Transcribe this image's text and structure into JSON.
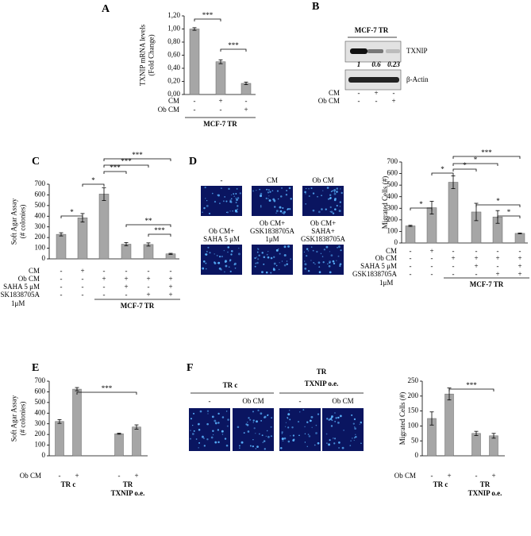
{
  "panel_labels": [
    "A",
    "B",
    "C",
    "D",
    "E",
    "F"
  ],
  "chart_data": [
    {
      "type": "bar",
      "ylabel": [
        "TXNIP mRNA levels",
        "(Fold Change)"
      ],
      "color": "#a6a6a6",
      "values": [
        1.0,
        0.5,
        0.17
      ],
      "errors": [
        0.02,
        0.03,
        0.02
      ],
      "ylim": [
        0,
        1.2
      ],
      "yticks": [
        {
          "value": 0,
          "label": "0,00"
        },
        {
          "value": 0.2,
          "label": "0,20"
        },
        {
          "value": 0.4,
          "label": "0,40"
        },
        {
          "value": 0.6,
          "label": "0,60"
        },
        {
          "value": 0.8,
          "label": "0,80"
        },
        {
          "value": 1.0,
          "label": "1,00"
        },
        {
          "value": 1.2,
          "label": "1,20"
        }
      ],
      "significance": [
        {
          "from": 0,
          "to": 1,
          "label": "***"
        },
        {
          "from": 1,
          "to": 2,
          "label": "***"
        }
      ],
      "conditions": [
        {
          "label": "CM",
          "signs": [
            "-",
            "+",
            "-"
          ]
        },
        {
          "label": "Ob CM",
          "signs": [
            "-",
            "-",
            "+"
          ]
        }
      ],
      "groups": [
        {
          "label": [
            "MCF-7 TR"
          ],
          "from": 0,
          "to": 2
        }
      ]
    },
    {
      "type": "bar",
      "ylabel": [
        "Soft Agar Assay",
        "(# colonies)"
      ],
      "color": "#a6a6a6",
      "values": [
        230,
        385,
        608,
        138,
        135,
        47
      ],
      "errors": [
        15,
        40,
        60,
        15,
        15,
        5
      ],
      "ylim": [
        0,
        700
      ],
      "yticks": [
        0,
        100,
        200,
        300,
        400,
        500,
        600,
        700
      ],
      "significance": [
        {
          "from": 0,
          "to": 1,
          "label": "*"
        },
        {
          "from": 1,
          "to": 2,
          "label": "*"
        },
        {
          "from": 2,
          "to": 3,
          "label": "***"
        },
        {
          "from": 2,
          "to": 4,
          "label": "***"
        },
        {
          "from": 2,
          "to": 5,
          "label": "***"
        },
        {
          "from": 3,
          "to": 5,
          "label": "**"
        },
        {
          "from": 4,
          "to": 5,
          "label": "***"
        }
      ],
      "conditions": [
        {
          "label": "CM",
          "signs": [
            "-",
            "+",
            "-",
            "-",
            "-",
            "-"
          ]
        },
        {
          "label": "Ob CM",
          "signs": [
            "-",
            "-",
            "+",
            "+",
            "+",
            "+"
          ]
        },
        {
          "label": "SAHA 5 μM",
          "signs": [
            "-",
            "-",
            "-",
            "+",
            "-",
            "+"
          ]
        },
        {
          "label": "GSK1838705A",
          "label2": "1μM",
          "signs": [
            "-",
            "-",
            "-",
            "-",
            "+",
            "+"
          ]
        }
      ],
      "groups": [
        {
          "label": [
            "MCF-7 TR"
          ],
          "from": 2,
          "to": 5
        }
      ]
    },
    {
      "type": "bar",
      "ylabel": [
        "Migrated Cells (#)"
      ],
      "color": "#a6a6a6",
      "values": [
        148,
        305,
        525,
        268,
        225,
        83
      ],
      "errors": [
        5,
        55,
        55,
        75,
        55,
        3
      ],
      "ylim": [
        0,
        700
      ],
      "yticks": [
        0,
        100,
        200,
        300,
        400,
        500,
        600,
        700
      ],
      "significance": [
        {
          "from": 0,
          "to": 1,
          "label": "*"
        },
        {
          "from": 1,
          "to": 2,
          "label": "*"
        },
        {
          "from": 2,
          "to": 3,
          "label": "*"
        },
        {
          "from": 2,
          "to": 4,
          "label": "*"
        },
        {
          "from": 2,
          "to": 5,
          "label": "***"
        },
        {
          "from": 3,
          "to": 5,
          "label": "*"
        },
        {
          "from": 4,
          "to": 5,
          "label": "*"
        }
      ],
      "conditions": [
        {
          "label": "CM",
          "signs": [
            "-",
            "+",
            "-",
            "-",
            "-",
            "-"
          ]
        },
        {
          "label": "Ob CM",
          "signs": [
            "-",
            "-",
            "+",
            "+",
            "+",
            "+"
          ]
        },
        {
          "label": "SAHA 5 μM",
          "signs": [
            "-",
            "-",
            "-",
            "+",
            "-",
            "+"
          ]
        },
        {
          "label": "GSK1838705A",
          "label2": "1μM",
          "signs": [
            "-",
            "-",
            "-",
            "-",
            "+",
            "+"
          ]
        }
      ],
      "groups": [
        {
          "label": [
            "MCF-7 TR"
          ],
          "from": 2,
          "to": 5
        }
      ]
    },
    {
      "type": "bar",
      "ylabel": [
        "Soft Agar Assay",
        "(# colonies)"
      ],
      "color": "#a6a6a6",
      "values": [
        322,
        625,
        207,
        270
      ],
      "errors": [
        18,
        15,
        5,
        20
      ],
      "ylim": [
        0,
        700
      ],
      "yticks": [
        0,
        100,
        200,
        300,
        400,
        500,
        600,
        700
      ],
      "significance": [
        {
          "from": 1,
          "to": 3,
          "label": "***"
        }
      ],
      "conditions": [
        {
          "label": "Ob CM",
          "signs": [
            "-",
            "+",
            "-",
            "+"
          ]
        }
      ],
      "groups": [
        {
          "label": [
            "TR c"
          ],
          "from": 0,
          "to": 1
        },
        {
          "label": [
            "TR",
            "TXNIP o.e."
          ],
          "from": 2,
          "to": 3
        }
      ]
    },
    {
      "type": "bar",
      "ylabel": [
        "Migrated Cells (#)"
      ],
      "color": "#a6a6a6",
      "values": [
        125,
        207,
        75,
        67
      ],
      "errors": [
        22,
        20,
        7,
        8
      ],
      "ylim": [
        0,
        250
      ],
      "yticks": [
        0,
        50,
        100,
        150,
        200,
        250
      ],
      "significance": [
        {
          "from": 1,
          "to": 3,
          "label": "***"
        }
      ],
      "conditions": [
        {
          "label": "Ob CM",
          "signs": [
            "-",
            "+",
            "-",
            "+"
          ]
        }
      ],
      "groups": [
        {
          "label": [
            "TR c"
          ],
          "from": 0,
          "to": 1
        },
        {
          "label": [
            "TR",
            "TXNIP o.e."
          ],
          "from": 2,
          "to": 3
        }
      ]
    }
  ],
  "blot": {
    "title": "MCF-7 TR",
    "bands": [
      "TXNIP",
      "β-Actin"
    ],
    "quantification": [
      1,
      0.6,
      0.23
    ],
    "conditions": [
      {
        "label": "CM",
        "signs": [
          "-",
          "+",
          "-"
        ]
      },
      {
        "label": "Ob CM",
        "signs": [
          "-",
          "-",
          "+"
        ]
      }
    ]
  },
  "micrographs_d": {
    "labels": [
      [
        "-"
      ],
      [
        "CM"
      ],
      [
        "Ob CM"
      ],
      [
        "Ob CM+",
        "SAHA 5 μM"
      ],
      [
        "Ob CM+",
        "GSK1838705A",
        "1μM"
      ],
      [
        "Ob CM+",
        "SAHA+",
        "GSK1838705A"
      ]
    ]
  },
  "micrographs_f": {
    "groups": [
      [
        "TR c"
      ],
      [
        "TR",
        "TXNIP o.e."
      ]
    ],
    "labels": [
      "-",
      "Ob CM",
      "-",
      "Ob CM"
    ]
  }
}
